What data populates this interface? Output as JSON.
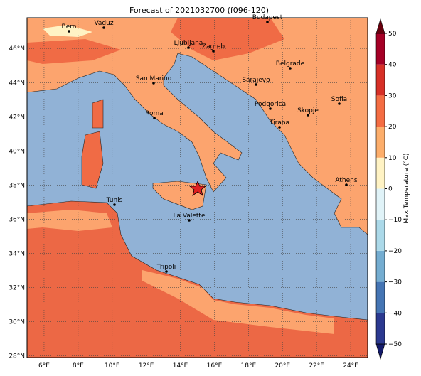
{
  "map": {
    "title": "Forecast of 2021032700 (f096-120)",
    "xlim": [
      5,
      25
    ],
    "ylim": [
      27.9,
      47.8
    ],
    "xticks": [
      {
        "value": 6,
        "label": "6°E"
      },
      {
        "value": 8,
        "label": "8°E"
      },
      {
        "value": 10,
        "label": "10°E"
      },
      {
        "value": 12,
        "label": "12°E"
      },
      {
        "value": 14,
        "label": "14°E"
      },
      {
        "value": 16,
        "label": "16°E"
      },
      {
        "value": 18,
        "label": "18°E"
      },
      {
        "value": 20,
        "label": "20°E"
      },
      {
        "value": 22,
        "label": "22°E"
      },
      {
        "value": 24,
        "label": "24°E"
      }
    ],
    "yticks": [
      {
        "value": 28,
        "label": "28°N"
      },
      {
        "value": 30,
        "label": "30°N"
      },
      {
        "value": 32,
        "label": "32°N"
      },
      {
        "value": 34,
        "label": "34°N"
      },
      {
        "value": 36,
        "label": "36°N"
      },
      {
        "value": 38,
        "label": "38°N"
      },
      {
        "value": 40,
        "label": "40°N"
      },
      {
        "value": 42,
        "label": "42°N"
      },
      {
        "value": 44,
        "label": "44°N"
      },
      {
        "value": 46,
        "label": "46°N"
      }
    ],
    "grid": true,
    "cities": [
      "Bern",
      "Vaduz",
      "Budapest",
      "Ljubljana",
      "Zagreb",
      "Belgrade",
      "San Marino",
      "Sarajevo",
      "Sofia",
      "Podgorica",
      "Skopje",
      "Roma",
      "Tirana",
      "Athens",
      "Tunis",
      "La Valette",
      "Tripoli"
    ],
    "colorbar": {
      "label": "Max Temperature (°C)",
      "ticks": [
        {
          "value": -50,
          "label": "−50"
        },
        {
          "value": -40,
          "label": "−40"
        },
        {
          "value": -30,
          "label": "−30"
        },
        {
          "value": -20,
          "label": "−20"
        },
        {
          "value": -10,
          "label": "−10"
        },
        0,
        10,
        20,
        30,
        40,
        50
      ],
      "colors": [
        "#2b3990",
        "#4575b4",
        "#74add1",
        "#abd9e9",
        "#e0f3f8",
        "#fff3c4",
        "#fdae6b",
        "#f46d43",
        "#d73027",
        "#a50026"
      ],
      "under_color": "#141b6b",
      "over_color": "#67000d"
    }
  }
}
